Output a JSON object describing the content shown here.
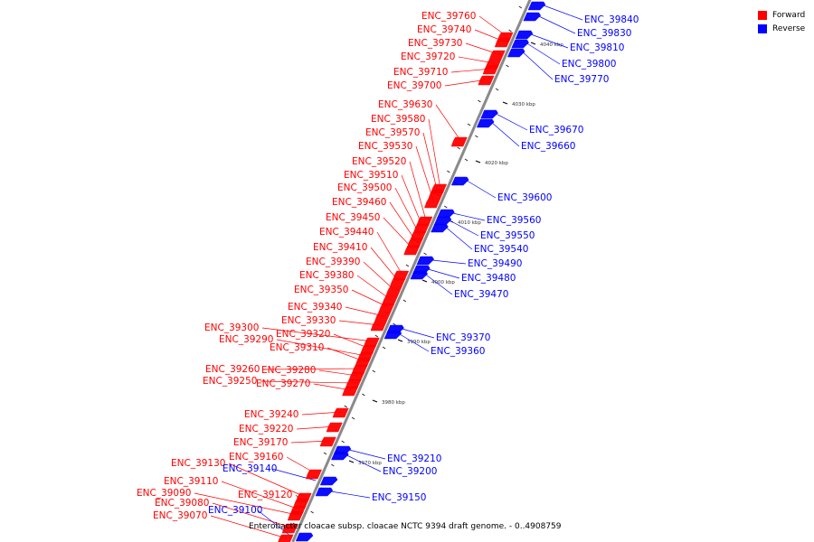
{
  "legend": {
    "forward_label": "Forward",
    "reverse_label": "Reverse",
    "forward_color": "#ff0000",
    "reverse_color": "#0000ff"
  },
  "caption": "Enterobacter cloacae subsp. cloacae NCTC 9394 draft genome. - 0..4908759",
  "ticks": [
    "3970 kbp",
    "3980 kbp",
    "3990 kbp",
    "4000 kbp",
    "4010 kbp",
    "4020 kbp",
    "4030 kbp",
    "4040 kbp"
  ],
  "forward_genes": [
    "ENC_39760",
    "ENC_39740",
    "ENC_39730",
    "ENC_39720",
    "ENC_39710",
    "ENC_39700",
    "ENC_39630",
    "ENC_39580",
    "ENC_39570",
    "ENC_39530",
    "ENC_39520",
    "ENC_39510",
    "ENC_39500",
    "ENC_39460",
    "ENC_39450",
    "ENC_39440",
    "ENC_39410",
    "ENC_39390",
    "ENC_39380",
    "ENC_39350",
    "ENC_39340",
    "ENC_39330",
    "ENC_39300",
    "ENC_39320",
    "ENC_39290",
    "ENC_39310",
    "ENC_39260",
    "ENC_39280",
    "ENC_39250",
    "ENC_39270",
    "ENC_39240",
    "ENC_39220",
    "ENC_39170",
    "ENC_39160",
    "ENC_39130",
    "ENC_39120",
    "ENC_39110",
    "ENC_39090",
    "ENC_39080",
    "ENC_39070"
  ],
  "reverse_genes": [
    "ENC_39840",
    "ENC_39830",
    "ENC_39810",
    "ENC_39800",
    "ENC_39770",
    "ENC_39670",
    "ENC_39660",
    "ENC_39600",
    "ENC_39560",
    "ENC_39550",
    "ENC_39540",
    "ENC_39490",
    "ENC_39480",
    "ENC_39470",
    "ENC_39370",
    "ENC_39360",
    "ENC_39210",
    "ENC_39200",
    "ENC_39150",
    "ENC_39140",
    "ENC_39100"
  ]
}
